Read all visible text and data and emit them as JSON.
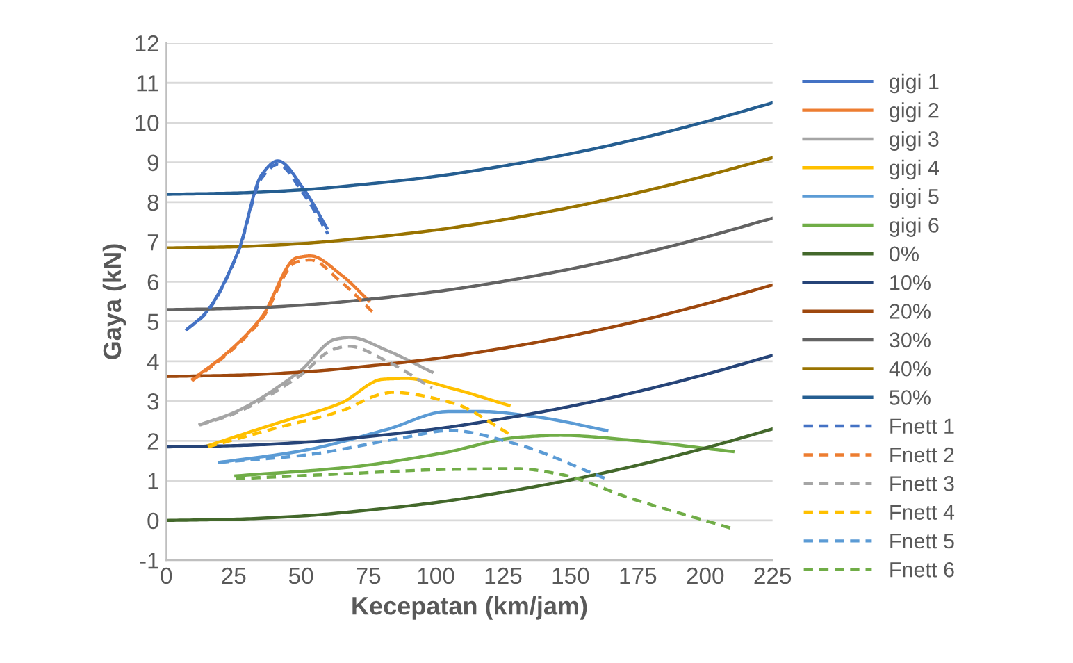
{
  "chart_data": {
    "type": "line",
    "xlabel": "Kecepatan (km/jam)",
    "ylabel": "Gaya (kN)",
    "xlim": [
      0,
      225
    ],
    "xticks": [
      0,
      25,
      50,
      75,
      100,
      125,
      150,
      175,
      200,
      225
    ],
    "ylim": [
      -1,
      12
    ],
    "yticks": [
      -1,
      0,
      1,
      2,
      3,
      4,
      5,
      6,
      7,
      8,
      9,
      10,
      11,
      12
    ],
    "grid": "y",
    "legend": "right",
    "marker": "none",
    "series": [
      {
        "name": "gigi 1",
        "color": "#4472c4",
        "line_style": "solid",
        "x": [
          7.6,
          14.6,
          26.7,
          35.3,
          41.4,
          51,
          59.6
        ],
        "values": [
          4.8,
          5.22,
          6.77,
          8.68,
          9.04,
          8.33,
          7.35
        ]
      },
      {
        "name": "gigi 2",
        "color": "#ed7d31",
        "line_style": "solid",
        "x": [
          9.7,
          21.5,
          35.3,
          48.3,
          53.5,
          64.8,
          75.2
        ],
        "values": [
          3.55,
          4.15,
          5.1,
          6.6,
          6.65,
          6.18,
          5.52
        ]
      },
      {
        "name": "gigi 3",
        "color": "#a5a5a5",
        "line_style": "solid",
        "x": [
          12.5,
          25,
          49.2,
          63,
          68.3,
          82,
          98.6
        ],
        "values": [
          2.41,
          2.71,
          3.73,
          4.56,
          4.6,
          4.27,
          3.73
        ]
      },
      {
        "name": "gigi 4",
        "color": "#ffc000",
        "line_style": "solid",
        "x": [
          15.4,
          42.3,
          64.8,
          80.4,
          89,
          106.4,
          127.2
        ],
        "values": [
          1.88,
          2.47,
          2.95,
          3.55,
          3.57,
          3.31,
          2.89
        ]
      },
      {
        "name": "gigi 5",
        "color": "#5b9bd5",
        "line_style": "solid",
        "x": [
          19.8,
          51,
          82,
          104.6,
          116.7,
          137.6,
          163.5
        ],
        "values": [
          1.46,
          1.76,
          2.29,
          2.74,
          2.74,
          2.6,
          2.26
        ]
      },
      {
        "name": "gigi 6",
        "color": "#70ad47",
        "line_style": "solid",
        "x": [
          25.8,
          68.2,
          102.9,
          130.6,
          146.2,
          172.2,
          210.3
        ],
        "values": [
          1.12,
          1.34,
          1.7,
          2.09,
          2.14,
          2.02,
          1.73
        ]
      },
      {
        "name": "0%",
        "color": "#43682b",
        "line_style": "solid",
        "x": [
          0,
          25,
          50,
          75,
          100,
          125,
          150,
          175,
          200,
          225
        ],
        "values": [
          0,
          0.03,
          0.11,
          0.26,
          0.45,
          0.71,
          1.02,
          1.39,
          1.82,
          2.3
        ]
      },
      {
        "name": "10%",
        "color": "#264478",
        "line_style": "solid",
        "x": [
          0,
          25,
          50,
          75,
          100,
          125,
          150,
          175,
          200,
          225
        ],
        "values": [
          1.85,
          1.88,
          1.96,
          2.11,
          2.3,
          2.56,
          2.87,
          3.24,
          3.67,
          4.15
        ]
      },
      {
        "name": "20%",
        "color": "#9e480e",
        "line_style": "solid",
        "x": [
          0,
          25,
          50,
          75,
          100,
          125,
          150,
          175,
          200,
          225
        ],
        "values": [
          3.62,
          3.65,
          3.73,
          3.88,
          4.07,
          4.33,
          4.64,
          5.01,
          5.44,
          5.92
        ]
      },
      {
        "name": "30%",
        "color": "#636363",
        "line_style": "solid",
        "x": [
          0,
          25,
          50,
          75,
          100,
          125,
          150,
          175,
          200,
          225
        ],
        "values": [
          5.3,
          5.33,
          5.41,
          5.56,
          5.75,
          6.01,
          6.32,
          6.69,
          7.12,
          7.6
        ]
      },
      {
        "name": "40%",
        "color": "#997300",
        "line_style": "solid",
        "x": [
          0,
          25,
          50,
          75,
          100,
          125,
          150,
          175,
          200,
          225
        ],
        "values": [
          6.85,
          6.88,
          6.96,
          7.11,
          7.3,
          7.56,
          7.87,
          8.24,
          8.66,
          9.12
        ]
      },
      {
        "name": "50%",
        "color": "#255e91",
        "line_style": "solid",
        "x": [
          0,
          25,
          50,
          75,
          100,
          125,
          150,
          175,
          200,
          225
        ],
        "values": [
          8.2,
          8.23,
          8.31,
          8.46,
          8.65,
          8.91,
          9.22,
          9.59,
          10.02,
          10.5
        ]
      },
      {
        "name": "Fnett 1",
        "color": "#4472c4",
        "line_style": "dashed",
        "x": [
          7.6,
          14.6,
          26.7,
          35.3,
          41.4,
          51,
          60
        ],
        "values": [
          4.8,
          5.2,
          6.75,
          8.6,
          8.95,
          8.2,
          7.2
        ]
      },
      {
        "name": "Fnett 2",
        "color": "#ed7d31",
        "line_style": "dashed",
        "x": [
          9.7,
          21.5,
          35.3,
          48.3,
          53.5,
          64.8,
          76.9
        ],
        "values": [
          3.52,
          4.12,
          5.05,
          6.5,
          6.55,
          6.0,
          5.22
        ]
      },
      {
        "name": "Fnett 3",
        "color": "#a5a5a5",
        "line_style": "dashed",
        "x": [
          12.5,
          25,
          49.2,
          62,
          67.6,
          82,
          98.6
        ],
        "values": [
          2.4,
          2.68,
          3.62,
          4.3,
          4.38,
          4.0,
          3.33
        ]
      },
      {
        "name": "Fnett 4",
        "color": "#ffc000",
        "line_style": "dashed",
        "x": [
          15.4,
          42.3,
          64.8,
          80,
          83.8,
          106.4,
          127.2
        ],
        "values": [
          1.85,
          2.35,
          2.75,
          3.18,
          3.22,
          2.95,
          2.18
        ]
      },
      {
        "name": "Fnett 5",
        "color": "#5b9bd5",
        "line_style": "dashed",
        "x": [
          19.8,
          51,
          85.6,
          105.5,
          128.9,
          163.5
        ],
        "values": [
          1.46,
          1.64,
          2.05,
          2.26,
          1.94,
          1.04
        ]
      },
      {
        "name": "Fnett 6",
        "color": "#70ad47",
        "line_style": "dashed",
        "x": [
          25.8,
          68.2,
          102.9,
          130.6,
          146.2,
          172.2,
          210.3
        ],
        "values": [
          1.05,
          1.18,
          1.28,
          1.3,
          1.16,
          0.56,
          -0.21
        ]
      }
    ]
  }
}
